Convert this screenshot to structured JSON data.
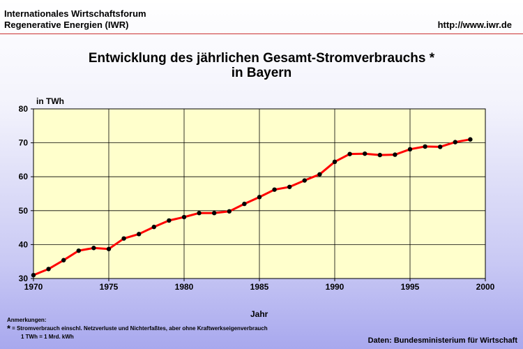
{
  "header": {
    "org_line1": "Internationales Wirtschaftsforum",
    "org_line2": "Regenerative Energien (IWR)",
    "url": "http://www.iwr.de"
  },
  "chart_data": {
    "type": "line",
    "title_line1": "Entwicklung des jährlichen Gesamt-Stromverbrauchs *",
    "title_line2": "in Bayern",
    "ylabel": "in TWh",
    "xlabel": "Jahr",
    "xlim": [
      1970,
      2000
    ],
    "ylim": [
      30,
      80
    ],
    "x_ticks": [
      1970,
      1975,
      1980,
      1985,
      1990,
      1995,
      2000
    ],
    "y_ticks": [
      30,
      40,
      50,
      60,
      70,
      80
    ],
    "grid": true,
    "colors": {
      "line": "#ff0000",
      "marker": "#000000",
      "plot_bg": "#ffffcc"
    },
    "x": [
      1970,
      1971,
      1972,
      1973,
      1974,
      1975,
      1976,
      1977,
      1978,
      1979,
      1980,
      1981,
      1982,
      1983,
      1984,
      1985,
      1986,
      1987,
      1988,
      1989,
      1990,
      1991,
      1992,
      1993,
      1994,
      1995,
      1996,
      1997,
      1998,
      1999
    ],
    "y": [
      31.0,
      32.8,
      35.4,
      38.2,
      39.0,
      38.7,
      41.8,
      43.1,
      45.2,
      47.1,
      48.1,
      49.3,
      49.3,
      49.8,
      52.0,
      54.0,
      56.2,
      57.0,
      58.9,
      60.7,
      64.4,
      66.7,
      66.8,
      66.4,
      66.5,
      68.1,
      68.9,
      68.8,
      70.2,
      71.0
    ]
  },
  "notes": {
    "heading": "Anmerkungen:",
    "star": "*",
    "line1": "= Stromverbrauch einschl. Netzverluste und Nichterfaßtes, aber ohne Kraftwerkseigenverbrauch",
    "line2": "1 TWh = 1 Mrd. kWh"
  },
  "source": "Daten: Bundesministerium für Wirtschaft"
}
